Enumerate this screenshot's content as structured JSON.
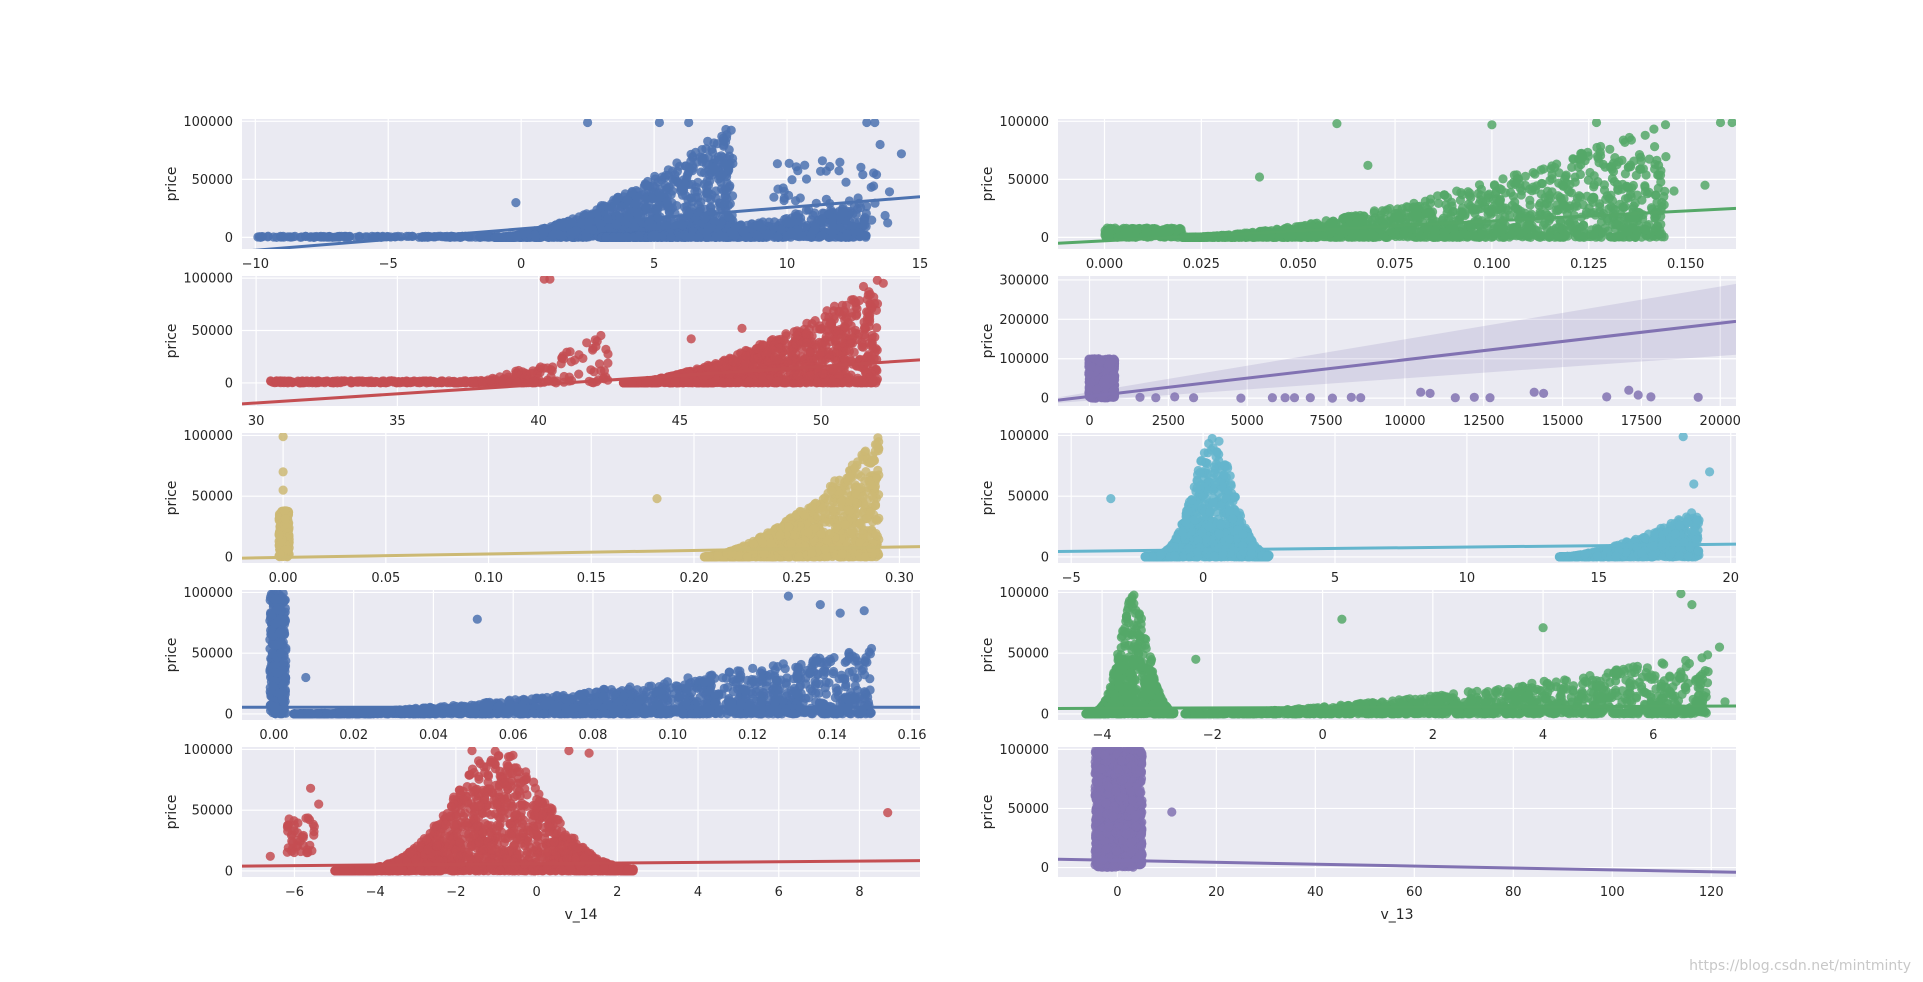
{
  "figure": {
    "watermark": "https://blog.csdn.net/mintminty"
  },
  "palette": {
    "blue": "#4c72b0",
    "green": "#55a868",
    "red": "#c44e52",
    "purple": "#8172b2",
    "gold": "#ccb974",
    "cyan": "#64b5cd",
    "panel_bg": "#eaeaf2",
    "grid": "#ffffff",
    "text": "#262626"
  },
  "chart_data": [
    {
      "id": "p1",
      "type": "scatter",
      "ylabel": "price",
      "xlabel": "",
      "color": "#4c72b0",
      "xlim": [
        -10.5,
        15
      ],
      "ylim": [
        -10000,
        102000
      ],
      "xticks": [
        -10,
        -5,
        0,
        5,
        10,
        15
      ],
      "xtick_labels": [
        "−10",
        "−5",
        "0",
        "5",
        "10",
        "15"
      ],
      "yticks": [
        0,
        50000,
        100000
      ],
      "ytick_labels": [
        "0",
        "50000",
        "100000"
      ],
      "regression": {
        "x": [
          -10.5,
          15
        ],
        "y": [
          -12000,
          35000
        ],
        "ci": false
      },
      "clusters": [
        {
          "x": [
            -10,
            1
          ],
          "y": [
            0,
            1000
          ],
          "n": 150,
          "shape": "flat"
        },
        {
          "x": [
            -1,
            8
          ],
          "y": [
            0,
            100000
          ],
          "n": 1300,
          "shape": "rise"
        },
        {
          "x": [
            3,
            13
          ],
          "y": [
            0,
            30000
          ],
          "n": 700,
          "shape": "rise"
        },
        {
          "x": [
            9.5,
            14
          ],
          "y": [
            0,
            70000
          ],
          "n": 60,
          "shape": "uniform"
        }
      ],
      "points": [
        [
          -9.8,
          0
        ],
        [
          -9.2,
          0
        ],
        [
          -7.8,
          0
        ],
        [
          -7.1,
          0
        ],
        [
          2.5,
          99000
        ],
        [
          5.2,
          99000
        ],
        [
          6.3,
          99000
        ],
        [
          13,
          99000
        ],
        [
          13.3,
          99000
        ],
        [
          13.5,
          80000
        ],
        [
          14.3,
          72000
        ],
        [
          -0.2,
          30000
        ]
      ]
    },
    {
      "id": "p2",
      "type": "scatter",
      "ylabel": "price",
      "xlabel": "",
      "color": "#55a868",
      "xlim": [
        -0.012,
        0.163
      ],
      "ylim": [
        -10000,
        102000
      ],
      "xticks": [
        0,
        0.025,
        0.05,
        0.075,
        0.1,
        0.125,
        0.15
      ],
      "xtick_labels": [
        "0.000",
        "0.025",
        "0.050",
        "0.075",
        "0.100",
        "0.125",
        "0.150"
      ],
      "yticks": [
        0,
        50000,
        100000
      ],
      "ytick_labels": [
        "0",
        "50000",
        "100000"
      ],
      "regression": {
        "x": [
          -0.012,
          0.163
        ],
        "y": [
          -5000,
          25000
        ],
        "ci": false
      },
      "clusters": [
        {
          "x": [
            0,
            0.02
          ],
          "y": [
            0,
            8000
          ],
          "n": 250,
          "shape": "uniform"
        },
        {
          "x": [
            0.02,
            0.145
          ],
          "y": [
            0,
            100000
          ],
          "n": 1500,
          "shape": "rise"
        }
      ],
      "points": [
        [
          0.06,
          98000
        ],
        [
          0.1,
          97000
        ],
        [
          0.127,
          99000
        ],
        [
          0.159,
          99000
        ],
        [
          0.162,
          99000
        ],
        [
          0.155,
          45000
        ],
        [
          0.147,
          40000
        ],
        [
          0.04,
          52000
        ],
        [
          0.068,
          62000
        ]
      ]
    },
    {
      "id": "p3",
      "type": "scatter",
      "ylabel": "price",
      "xlabel": "",
      "color": "#c44e52",
      "xlim": [
        29.5,
        53.5
      ],
      "ylim": [
        -22000,
        102000
      ],
      "xticks": [
        30,
        35,
        40,
        45,
        50
      ],
      "xtick_labels": [
        "30",
        "35",
        "40",
        "45",
        "50"
      ],
      "yticks": [
        0,
        50000,
        100000
      ],
      "ytick_labels": [
        "0",
        "50000",
        "100000"
      ],
      "regression": {
        "x": [
          29.5,
          53.5
        ],
        "y": [
          -20000,
          22000
        ],
        "ci": false
      },
      "clusters": [
        {
          "x": [
            30.5,
            40
          ],
          "y": [
            0,
            2000
          ],
          "n": 300,
          "shape": "flat"
        },
        {
          "x": [
            37,
            42.5
          ],
          "y": [
            0,
            50000
          ],
          "n": 150,
          "shape": "rise"
        },
        {
          "x": [
            43,
            52
          ],
          "y": [
            0,
            100000
          ],
          "n": 1400,
          "shape": "rise"
        }
      ],
      "points": [
        [
          40.2,
          99000
        ],
        [
          40.4,
          99000
        ],
        [
          51.5,
          92000
        ],
        [
          52.2,
          95000
        ],
        [
          47.2,
          52000
        ],
        [
          45.4,
          42000
        ]
      ]
    },
    {
      "id": "p4",
      "type": "scatter",
      "ylabel": "price",
      "xlabel": "",
      "color": "#8172b2",
      "xlim": [
        -1000,
        20500
      ],
      "ylim": [
        -20000,
        310000
      ],
      "xticks": [
        0,
        2500,
        5000,
        7500,
        10000,
        12500,
        15000,
        17500,
        20000
      ],
      "xtick_labels": [
        "0",
        "2500",
        "5000",
        "7500",
        "10000",
        "12500",
        "15000",
        "17500",
        "20000"
      ],
      "yticks": [
        0,
        100000,
        200000,
        300000
      ],
      "ytick_labels": [
        "0",
        "100000",
        "200000",
        "300000"
      ],
      "regression": {
        "x": [
          -1000,
          20500
        ],
        "y": [
          -5000,
          195000
        ],
        "ci": true,
        "ci_lo": [
          -12000,
          110000
        ],
        "ci_hi": [
          2000,
          290000
        ]
      },
      "clusters": [
        {
          "x": [
            -20,
            800
          ],
          "y": [
            0,
            100000
          ],
          "n": 700,
          "shape": "uniform"
        }
      ],
      "points": [
        [
          1600,
          2000
        ],
        [
          2100,
          1000
        ],
        [
          2700,
          3000
        ],
        [
          3300,
          1000
        ],
        [
          4800,
          0
        ],
        [
          5800,
          1000
        ],
        [
          6200,
          1000
        ],
        [
          6500,
          1000
        ],
        [
          7000,
          1000
        ],
        [
          7700,
          0
        ],
        [
          8300,
          2000
        ],
        [
          8600,
          1000
        ],
        [
          10500,
          15000
        ],
        [
          10800,
          12000
        ],
        [
          11600,
          1000
        ],
        [
          12200,
          2000
        ],
        [
          12700,
          1000
        ],
        [
          14100,
          15000
        ],
        [
          14400,
          12000
        ],
        [
          16400,
          3000
        ],
        [
          17100,
          20000
        ],
        [
          17400,
          8000
        ],
        [
          17800,
          3000
        ],
        [
          19300,
          2000
        ]
      ]
    },
    {
      "id": "p5",
      "type": "scatter",
      "ylabel": "price",
      "xlabel": "",
      "color": "#ccb974",
      "xlim": [
        -0.02,
        0.31
      ],
      "ylim": [
        -5000,
        102000
      ],
      "xticks": [
        0,
        0.05,
        0.1,
        0.15,
        0.2,
        0.25,
        0.3
      ],
      "xtick_labels": [
        "0.00",
        "0.05",
        "0.10",
        "0.15",
        "0.20",
        "0.25",
        "0.30"
      ],
      "yticks": [
        0,
        50000,
        100000
      ],
      "ytick_labels": [
        "0",
        "50000",
        "100000"
      ],
      "regression": {
        "x": [
          -0.02,
          0.31
        ],
        "y": [
          -1000,
          8500
        ],
        "ci": false
      },
      "clusters": [
        {
          "x": [
            -0.002,
            0.003
          ],
          "y": [
            0,
            38000
          ],
          "n": 250,
          "shape": "uniform"
        },
        {
          "x": [
            0.205,
            0.29
          ],
          "y": [
            0,
            100000
          ],
          "n": 1500,
          "shape": "rise"
        }
      ],
      "points": [
        [
          0,
          99000
        ],
        [
          0,
          70000
        ],
        [
          0,
          55000
        ],
        [
          0.182,
          48000
        ]
      ]
    },
    {
      "id": "p6",
      "type": "scatter",
      "ylabel": "price",
      "xlabel": "",
      "color": "#64b5cd",
      "xlim": [
        -5.5,
        20.2
      ],
      "ylim": [
        -5000,
        102000
      ],
      "xticks": [
        -5,
        0,
        5,
        10,
        15,
        20
      ],
      "xtick_labels": [
        "−5",
        "0",
        "5",
        "10",
        "15",
        "20"
      ],
      "yticks": [
        0,
        50000,
        100000
      ],
      "ytick_labels": [
        "0",
        "50000",
        "100000"
      ],
      "regression": {
        "x": [
          -5.5,
          20.2
        ],
        "y": [
          4500,
          10500
        ],
        "ci": false
      },
      "clusters": [
        {
          "x": [
            -2.2,
            2.5
          ],
          "y": [
            0,
            100000
          ],
          "n": 1200,
          "shape": "peak"
        },
        {
          "x": [
            13.5,
            18.8
          ],
          "y": [
            0,
            40000
          ],
          "n": 700,
          "shape": "rise"
        }
      ],
      "points": [
        [
          -3.5,
          48000
        ],
        [
          18.2,
          99000
        ],
        [
          19.2,
          70000
        ],
        [
          18.6,
          60000
        ]
      ]
    },
    {
      "id": "p7",
      "type": "scatter",
      "ylabel": "price",
      "xlabel": "",
      "color": "#4c72b0",
      "xlim": [
        -0.008,
        0.162
      ],
      "ylim": [
        -5000,
        102000
      ],
      "xticks": [
        0,
        0.02,
        0.04,
        0.06,
        0.08,
        0.1,
        0.12,
        0.14,
        0.16
      ],
      "xtick_labels": [
        "0.00",
        "0.02",
        "0.04",
        "0.06",
        "0.08",
        "0.10",
        "0.12",
        "0.14",
        "0.16"
      ],
      "yticks": [
        0,
        50000,
        100000
      ],
      "ytick_labels": [
        "0",
        "50000",
        "100000"
      ],
      "regression": {
        "x": [
          -0.008,
          0.162
        ],
        "y": [
          5500,
          5500
        ],
        "ci": false
      },
      "clusters": [
        {
          "x": [
            -0.001,
            0.003
          ],
          "y": [
            0,
            100000
          ],
          "n": 300,
          "shape": "uniform"
        },
        {
          "x": [
            0.005,
            0.15
          ],
          "y": [
            0,
            55000
          ],
          "n": 1700,
          "shape": "rise"
        }
      ],
      "points": [
        [
          0.051,
          78000
        ],
        [
          0.129,
          97000
        ],
        [
          0.137,
          90000
        ],
        [
          0.148,
          85000
        ],
        [
          0.142,
          83000
        ],
        [
          0.008,
          30000
        ]
      ]
    },
    {
      "id": "p8",
      "type": "scatter",
      "ylabel": "price",
      "xlabel": "",
      "color": "#55a868",
      "xlim": [
        -4.8,
        7.5
      ],
      "ylim": [
        -5000,
        102000
      ],
      "xticks": [
        -4,
        -2,
        0,
        2,
        4,
        6
      ],
      "xtick_labels": [
        "−4",
        "−2",
        "0",
        "2",
        "4",
        "6"
      ],
      "yticks": [
        0,
        50000,
        100000
      ],
      "ytick_labels": [
        "0",
        "50000",
        "100000"
      ],
      "regression": {
        "x": [
          -4.8,
          7.5
        ],
        "y": [
          4500,
          6500
        ],
        "ci": false
      },
      "clusters": [
        {
          "x": [
            -4.3,
            -2.7
          ],
          "y": [
            0,
            100000
          ],
          "n": 900,
          "shape": "peak"
        },
        {
          "x": [
            -2.5,
            7
          ],
          "y": [
            0,
            50000
          ],
          "n": 1300,
          "shape": "rise"
        }
      ],
      "points": [
        [
          -2.3,
          45000
        ],
        [
          0.35,
          78000
        ],
        [
          6.5,
          99000
        ],
        [
          6.7,
          90000
        ],
        [
          7.2,
          55000
        ],
        [
          7.3,
          10000
        ],
        [
          4,
          71000
        ]
      ]
    },
    {
      "id": "p9",
      "type": "scatter",
      "ylabel": "price",
      "xlabel": "v_14",
      "color": "#c44e52",
      "xlim": [
        -7.3,
        9.5
      ],
      "ylim": [
        -5000,
        102000
      ],
      "xticks": [
        -6,
        -4,
        -2,
        0,
        2,
        4,
        6,
        8
      ],
      "xtick_labels": [
        "−6",
        "−4",
        "−2",
        "0",
        "2",
        "4",
        "6",
        "8"
      ],
      "yticks": [
        0,
        50000,
        100000
      ],
      "ytick_labels": [
        "0",
        "50000",
        "100000"
      ],
      "regression": {
        "x": [
          -7.3,
          9.5
        ],
        "y": [
          4000,
          8500
        ],
        "ci": false
      },
      "clusters": [
        {
          "x": [
            -6.2,
            -5.5
          ],
          "y": [
            15000,
            45000
          ],
          "n": 40,
          "shape": "uniform"
        },
        {
          "x": [
            -5,
            2.4
          ],
          "y": [
            0,
            100000
          ],
          "n": 1900,
          "shape": "peak"
        }
      ],
      "points": [
        [
          -6.6,
          12000
        ],
        [
          -5.6,
          68000
        ],
        [
          -5.4,
          55000
        ],
        [
          8.7,
          48000
        ],
        [
          -1.6,
          99000
        ],
        [
          0.8,
          99000
        ],
        [
          1.3,
          97000
        ]
      ]
    },
    {
      "id": "p10",
      "type": "scatter",
      "ylabel": "price",
      "xlabel": "v_13",
      "color": "#8172b2",
      "xlim": [
        -12,
        125
      ],
      "ylim": [
        -8000,
        102000
      ],
      "xticks": [
        0,
        20,
        40,
        60,
        80,
        100,
        120
      ],
      "xtick_labels": [
        "0",
        "20",
        "40",
        "60",
        "80",
        "100",
        "120"
      ],
      "yticks": [
        0,
        50000,
        100000
      ],
      "ytick_labels": [
        "0",
        "50000",
        "100000"
      ],
      "regression": {
        "x": [
          -12,
          125
        ],
        "y": [
          7000,
          -4000
        ],
        "ci": false
      },
      "clusters": [
        {
          "x": [
            -4.5,
            5
          ],
          "y": [
            0,
            100000
          ],
          "n": 1400,
          "shape": "uniform"
        }
      ],
      "points": [
        [
          11,
          47000
        ]
      ]
    }
  ]
}
